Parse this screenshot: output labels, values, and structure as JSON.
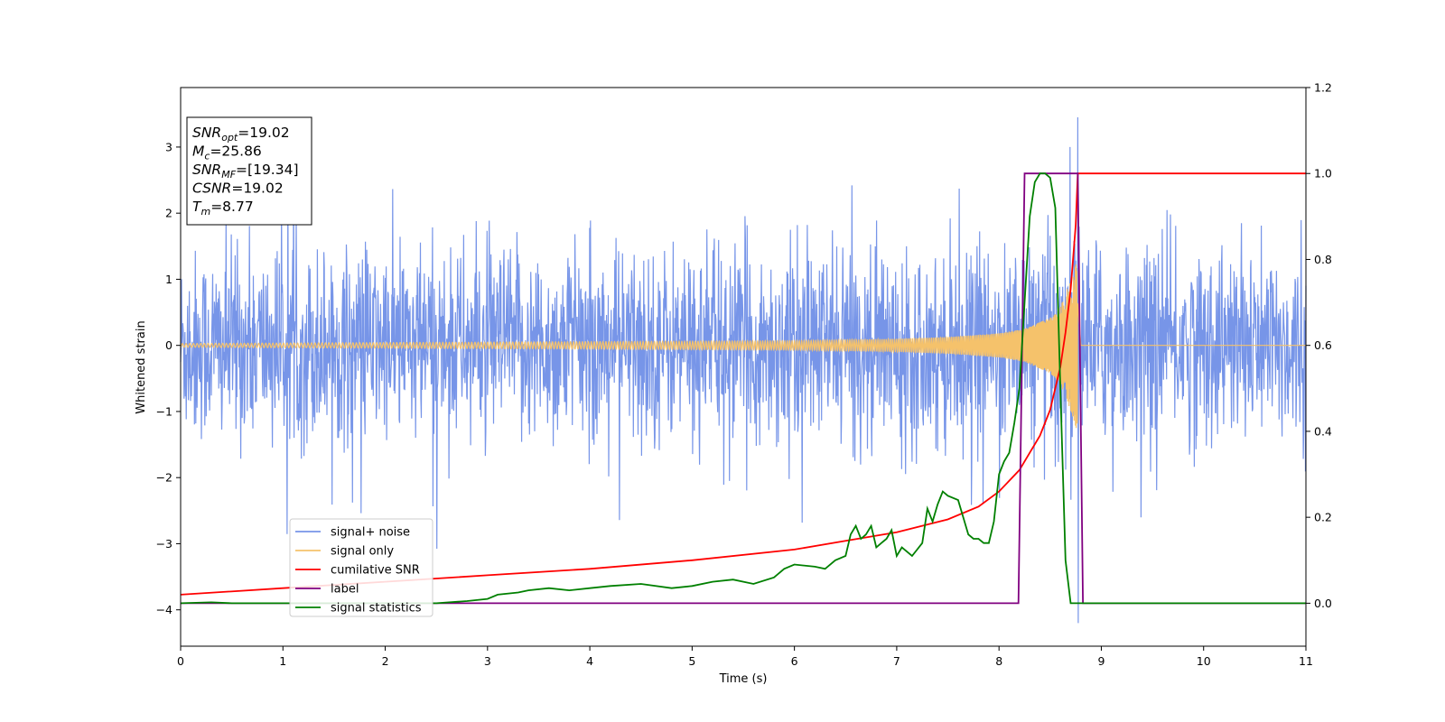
{
  "chart_data": {
    "type": "line",
    "title": "",
    "xlabel": "Time (s)",
    "ylabel": "Whitened strain",
    "y2label": "",
    "xlim": [
      0,
      11
    ],
    "ylim": [
      -4.55,
      3.9
    ],
    "y2lim": [
      -0.1,
      1.2
    ],
    "xticks": [
      0,
      1,
      2,
      3,
      4,
      5,
      6,
      7,
      8,
      9,
      10,
      11
    ],
    "yticks": [
      3,
      2,
      1,
      0,
      -1,
      -2,
      -3,
      -4
    ],
    "y2ticks": [
      1.2,
      1.0,
      0.8,
      0.6,
      0.4,
      0.2,
      0.0
    ],
    "ytick_labels": [
      "3",
      "2",
      "1",
      "0",
      "−1",
      "−2",
      "−3",
      "−4"
    ],
    "y2tick_labels": [
      "1.2",
      "1.0",
      "0.8",
      "0.6",
      "0.4",
      "0.2",
      "0.0"
    ],
    "grid": false,
    "legend_position": "lower-left",
    "colors": {
      "signal_noise": "#6b8ce6",
      "signal_only": "#f5c26b",
      "cumulative_snr": "#ff0000",
      "label": "#800080",
      "signal_statistics": "#008000"
    },
    "annotation": {
      "lines": [
        {
          "base": "SNR",
          "sub": "opt",
          "rest": "=19.02"
        },
        {
          "base": "M",
          "sub": "c",
          "rest": "=25.86"
        },
        {
          "base": "SNR",
          "sub": "MF",
          "rest": "=[19.34]"
        },
        {
          "base": "CSNR",
          "sub": "",
          "rest": "=19.02"
        },
        {
          "base": "T",
          "sub": "m",
          "rest": "=8.77"
        }
      ]
    },
    "series": [
      {
        "name": "signal+ noise",
        "axis": "left",
        "description_values": {
          "typical_amplitude": 1.4,
          "max": 3.45,
          "min": -4.2,
          "peak_time": 8.77
        }
      },
      {
        "name": "signal only",
        "axis": "left",
        "x": [
          0,
          2,
          4,
          6,
          7,
          7.5,
          8,
          8.25,
          8.5,
          8.6,
          8.7,
          8.77,
          8.8,
          11
        ],
        "envelope": [
          0.02,
          0.03,
          0.04,
          0.05,
          0.07,
          0.09,
          0.13,
          0.18,
          0.3,
          0.42,
          0.7,
          0.95,
          0,
          0
        ]
      },
      {
        "name": "cumilative SNR",
        "axis": "right",
        "x": [
          0,
          1,
          2,
          3,
          4,
          5,
          6,
          6.5,
          7,
          7.5,
          7.8,
          8.0,
          8.2,
          8.4,
          8.5,
          8.6,
          8.65,
          8.7,
          8.75,
          8.77,
          11
        ],
        "y": [
          0.02,
          0.035,
          0.05,
          0.065,
          0.08,
          0.1,
          0.125,
          0.145,
          0.165,
          0.195,
          0.225,
          0.26,
          0.31,
          0.39,
          0.45,
          0.55,
          0.63,
          0.73,
          0.88,
          1.0,
          1.0
        ]
      },
      {
        "name": "label",
        "axis": "right",
        "x": [
          0,
          8.19,
          8.25,
          8.77,
          8.82,
          11
        ],
        "y": [
          0.0,
          0.0,
          1.0,
          1.0,
          0.0,
          0.0
        ]
      },
      {
        "name": "signal statistics",
        "axis": "right",
        "x": [
          0,
          0.3,
          0.5,
          1,
          2,
          2.5,
          2.8,
          3.0,
          3.1,
          3.3,
          3.4,
          3.6,
          3.8,
          4.0,
          4.2,
          4.5,
          4.8,
          5.0,
          5.2,
          5.4,
          5.6,
          5.8,
          5.9,
          6.0,
          6.2,
          6.3,
          6.4,
          6.5,
          6.55,
          6.6,
          6.65,
          6.7,
          6.75,
          6.8,
          6.85,
          6.9,
          6.95,
          7.0,
          7.05,
          7.1,
          7.15,
          7.25,
          7.3,
          7.35,
          7.4,
          7.45,
          7.5,
          7.6,
          7.7,
          7.75,
          7.8,
          7.85,
          7.9,
          7.95,
          8.0,
          8.05,
          8.1,
          8.15,
          8.2,
          8.25,
          8.3,
          8.35,
          8.4,
          8.45,
          8.5,
          8.55,
          8.6,
          8.65,
          8.7,
          8.75,
          8.8,
          8.85,
          11
        ],
        "y": [
          0.0,
          0.002,
          0.0,
          0.0,
          0.0,
          0.0,
          0.005,
          0.01,
          0.02,
          0.025,
          0.03,
          0.035,
          0.03,
          0.035,
          0.04,
          0.045,
          0.035,
          0.04,
          0.05,
          0.055,
          0.045,
          0.06,
          0.08,
          0.09,
          0.085,
          0.08,
          0.1,
          0.11,
          0.16,
          0.18,
          0.15,
          0.16,
          0.18,
          0.13,
          0.14,
          0.15,
          0.17,
          0.11,
          0.13,
          0.12,
          0.11,
          0.14,
          0.22,
          0.19,
          0.23,
          0.26,
          0.25,
          0.24,
          0.16,
          0.15,
          0.15,
          0.14,
          0.14,
          0.19,
          0.3,
          0.33,
          0.35,
          0.42,
          0.5,
          0.7,
          0.9,
          0.98,
          1.0,
          1.0,
          0.99,
          0.92,
          0.5,
          0.1,
          0.0,
          0.0,
          0.0,
          0.0,
          0.0
        ]
      }
    ]
  }
}
